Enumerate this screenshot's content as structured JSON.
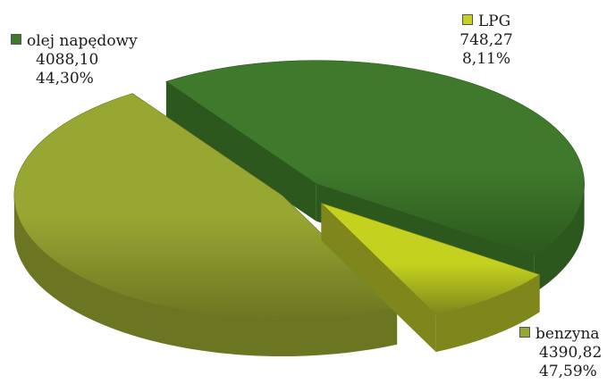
{
  "chart_data": {
    "type": "pie",
    "style": "3d-exploded",
    "slices": [
      {
        "label": "olej napędowy",
        "value": "4088,10",
        "percent": "44,30%",
        "num_value": 4088.1,
        "color": "#3f7a2c",
        "side_color": "#2c581d"
      },
      {
        "label": "LPG",
        "value": "748,27",
        "percent": "8,11%",
        "num_value": 748.27,
        "color": "#c4d11e",
        "side_color": "#7e861c"
      },
      {
        "label": "benzyna",
        "value": "4390,82",
        "percent": "47,59%",
        "num_value": 4390.82,
        "color": "#98a632",
        "side_color": "#6c7622"
      }
    ]
  }
}
